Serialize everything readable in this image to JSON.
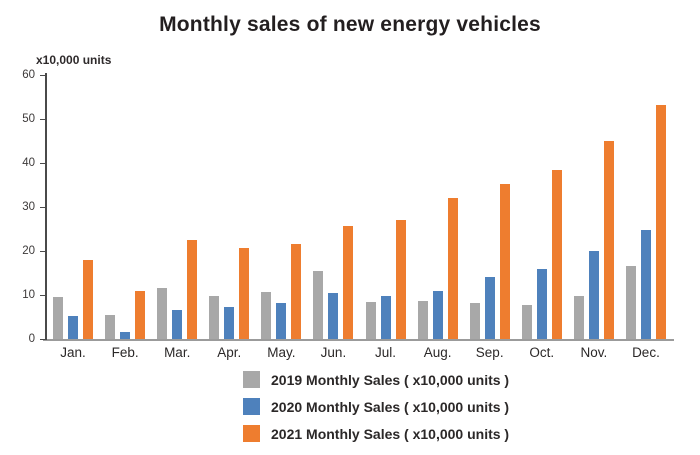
{
  "chart_data": {
    "type": "bar",
    "title": "Monthly sales of new energy vehicles",
    "ylabel": "x10,000 units",
    "xlabel": "",
    "ylim": [
      0,
      60
    ],
    "yticks": [
      0,
      10,
      20,
      30,
      40,
      50,
      60
    ],
    "grid": false,
    "legend_position": "bottom",
    "categories": [
      "Jan.",
      "Feb.",
      "Mar.",
      "Apr.",
      "May.",
      "Jun.",
      "Jul.",
      "Aug.",
      "Sep.",
      "Oct.",
      "Nov.",
      "Dec."
    ],
    "series": [
      {
        "name": "2019 Monthly Sales",
        "label": "2019 Monthly Sales ( x10,000 units )",
        "color": "#a8a8a8",
        "values": [
          9.6,
          5.5,
          11.5,
          9.7,
          10.7,
          15.5,
          8.3,
          8.7,
          8.2,
          7.8,
          9.7,
          16.5
        ]
      },
      {
        "name": "2020 Monthly Sales",
        "label": "2020 Monthly Sales ( x10,000 units )",
        "color": "#4e81bc",
        "values": [
          5.2,
          1.5,
          6.5,
          7.3,
          8.2,
          10.5,
          9.7,
          10.8,
          14.0,
          16.0,
          20.1,
          24.8
        ]
      },
      {
        "name": "2021 Monthly Sales",
        "label": "2021 Monthly Sales ( x10,000 units )",
        "color": "#ee7d2f",
        "values": [
          18.0,
          11.0,
          22.6,
          20.6,
          21.7,
          25.6,
          27.1,
          32.1,
          35.3,
          38.3,
          45.0,
          53.1
        ]
      }
    ]
  }
}
